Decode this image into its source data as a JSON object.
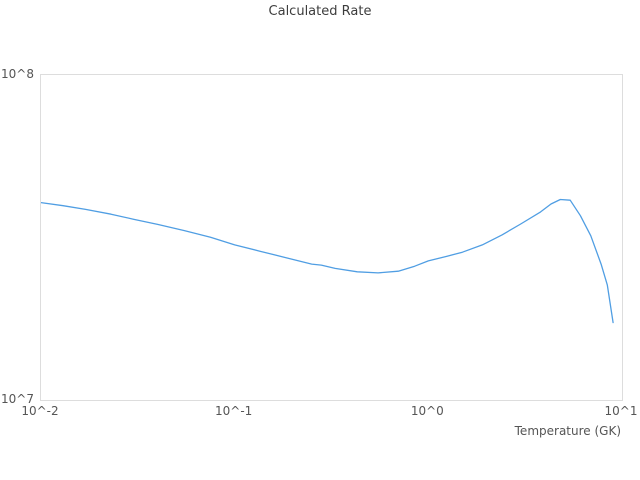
{
  "chart": {
    "title": "Calculated Rate",
    "x_axis": {
      "label": "Temperature (GK)",
      "ticks": [
        {
          "label": "10^-2",
          "value": 0.01
        },
        {
          "label": "10^-1",
          "value": 0.1
        },
        {
          "label": "10^0",
          "value": 1
        },
        {
          "label": "10^1",
          "value": 10
        }
      ]
    },
    "y_axis": {
      "ticks": [
        {
          "label": "10^7",
          "value": 10000000.0
        },
        {
          "label": "10^8",
          "value": 100000000.0
        }
      ]
    },
    "colors": {
      "line": "#509ee3",
      "plot_border": "#dddddd",
      "title_text": "#3d3d3d",
      "tick_text": "#555555"
    }
  },
  "chart_data": {
    "type": "line",
    "title": "Calculated Rate",
    "xlabel": "Temperature (GK)",
    "ylabel": "",
    "xscale": "log",
    "yscale": "log",
    "xlim": [
      0.01,
      10
    ],
    "ylim": [
      10000000.0,
      100000000.0
    ],
    "grid": false,
    "legend": false,
    "series": [
      {
        "name": "Calculated Rate",
        "x": [
          0.01,
          0.013,
          0.017,
          0.023,
          0.03,
          0.04,
          0.055,
          0.075,
          0.1,
          0.135,
          0.18,
          0.25,
          0.28,
          0.33,
          0.43,
          0.55,
          0.7,
          0.85,
          1.0,
          1.25,
          1.5,
          1.9,
          2.4,
          3.0,
          3.8,
          4.3,
          4.8,
          5.4,
          6.1,
          6.9,
          7.8,
          8.4,
          9.0
        ],
        "y": [
          40500000.0,
          39600000.0,
          38600000.0,
          37300000.0,
          36000000.0,
          34700000.0,
          33200000.0,
          31700000.0,
          30000000.0,
          28700000.0,
          27500000.0,
          26200000.0,
          26000000.0,
          25400000.0,
          24800000.0,
          24600000.0,
          24900000.0,
          25800000.0,
          26800000.0,
          27700000.0,
          28500000.0,
          30000000.0,
          32200000.0,
          34800000.0,
          37900000.0,
          40100000.0,
          41400000.0,
          41200000.0,
          36900000.0,
          32000000.0,
          26200000.0,
          22600000.0,
          17300000.0
        ]
      }
    ]
  }
}
